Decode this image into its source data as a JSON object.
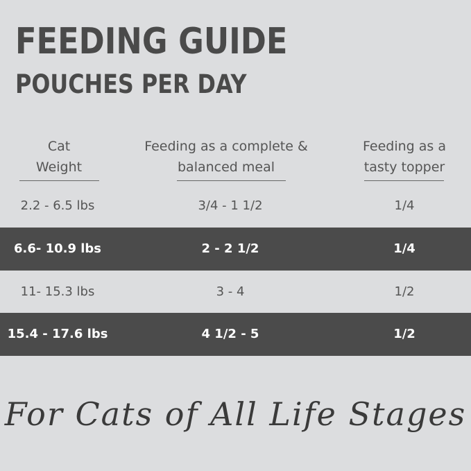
{
  "header": {
    "title": "FEEDING GUIDE",
    "subtitle": "POUCHES PER DAY"
  },
  "table": {
    "columns": [
      "Cat Weight",
      "Feeding as a complete & balanced meal",
      "Feeding as a tasty topper"
    ],
    "rows": [
      [
        "2.2 - 6.5 lbs",
        "3/4 - 1 1/2",
        "1/4"
      ],
      [
        "6.6- 10.9 lbs",
        "2 - 2 1/2",
        "1/4"
      ],
      [
        "11- 15.3 lbs",
        "3 - 4",
        "1/2"
      ],
      [
        "15.4 - 17.6 lbs",
        "4 1/2 - 5",
        "1/2"
      ]
    ]
  },
  "footer": {
    "tagline": "For Cats of All Life Stages"
  }
}
